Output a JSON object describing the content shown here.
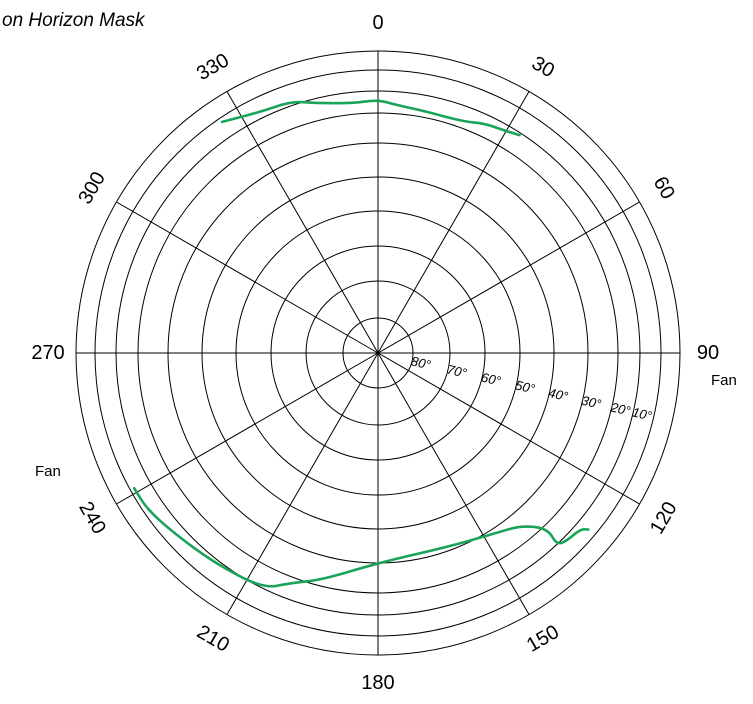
{
  "chart_data": {
    "type": "line",
    "coordinate_system": "polar",
    "title": "on Horizon Mask",
    "azimuth_tick_labels": [
      "0",
      "30",
      "60",
      "90",
      "120",
      "150",
      "180",
      "210",
      "240",
      "270",
      "300",
      "330"
    ],
    "elevation_ring_labels": [
      "80°",
      "70°",
      "60°",
      "50°",
      "40°",
      "30°",
      "20°",
      "10°"
    ],
    "elevation_range": [
      0,
      90
    ],
    "annotations": [
      "Fan",
      "Fan"
    ],
    "colors": {
      "mask": "#1aa35a",
      "grid": "#000000"
    },
    "series": [
      {
        "points": [
          {
            "az": 326,
            "el": 2
          },
          {
            "az": 334,
            "el": 7
          },
          {
            "az": 341,
            "el": 8
          },
          {
            "az": 346,
            "el": 12
          },
          {
            "az": 354,
            "el": 15
          },
          {
            "az": 0,
            "el": 14
          },
          {
            "az": 4,
            "el": 16
          },
          {
            "az": 10,
            "el": 17
          },
          {
            "az": 20,
            "el": 17
          },
          {
            "az": 25,
            "el": 14
          },
          {
            "az": 29,
            "el": 13
          },
          {
            "az": 33,
            "el": 11
          }
        ]
      },
      {
        "points": [
          {
            "az": 241,
            "el": 2
          },
          {
            "az": 236,
            "el": 2
          },
          {
            "az": 229,
            "el": 5
          },
          {
            "az": 218,
            "el": 8
          },
          {
            "az": 206,
            "el": 10
          },
          {
            "az": 201,
            "el": 17
          },
          {
            "az": 194,
            "el": 22
          },
          {
            "az": 180,
            "el": 30
          },
          {
            "az": 159,
            "el": 31
          },
          {
            "az": 146,
            "el": 28
          },
          {
            "az": 140,
            "el": 25
          },
          {
            "az": 136,
            "el": 18
          },
          {
            "az": 137,
            "el": 10
          },
          {
            "az": 135,
            "el": 8
          },
          {
            "az": 131,
            "el": 7
          },
          {
            "az": 130,
            "el": 4
          }
        ]
      }
    ],
    "grid": true
  }
}
